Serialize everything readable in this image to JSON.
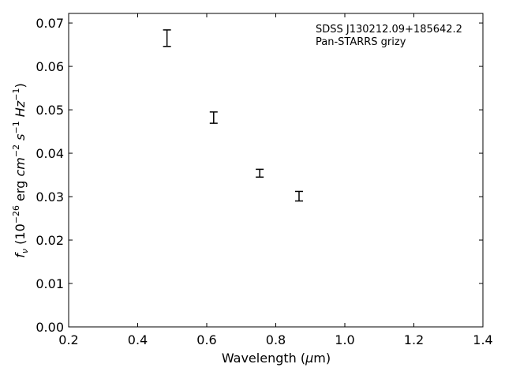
{
  "chart_data": {
    "type": "scatter",
    "title": "",
    "xlabel_prefix": "Wavelength (",
    "xlabel_mu": "μ",
    "xlabel_unit": "m",
    "xlabel_suffix": ")",
    "ylabel_f": "f",
    "ylabel_nu": "ν",
    "ylabel_open": " (10",
    "ylabel_exp_26": "−26",
    "ylabel_erg": " erg ",
    "ylabel_cm": "cm",
    "ylabel_exp_cm": "−2",
    "ylabel_s": " s",
    "ylabel_exp_s": "−1",
    "ylabel_hz": " Hz",
    "ylabel_exp_hz": "−1",
    "ylabel_close": ")",
    "xlim": [
      0.2,
      1.4
    ],
    "ylim": [
      0.0,
      0.0722
    ],
    "xticks": [
      0.2,
      0.4,
      0.6,
      0.8,
      1.0,
      1.2,
      1.4
    ],
    "xtick_labels": [
      "0.2",
      "0.4",
      "0.6",
      "0.8",
      "1.0",
      "1.2",
      "1.4"
    ],
    "yticks": [
      0.0,
      0.01,
      0.02,
      0.03,
      0.04,
      0.05,
      0.06,
      0.07
    ],
    "ytick_labels": [
      "0.00",
      "0.01",
      "0.02",
      "0.03",
      "0.04",
      "0.05",
      "0.06",
      "0.07"
    ],
    "grid": false,
    "annotations": [
      "SDSS J130212.09+185642.2",
      "Pan-STARRS grizy"
    ],
    "annotation_position": "top-right",
    "series": [
      {
        "x": [
          0.4849,
          0.6201,
          0.7535,
          0.8674
        ],
        "y": [
          0.0665,
          0.0482,
          0.0354,
          0.0301
        ],
        "yerr": [
          0.0019,
          0.0013,
          0.0009,
          0.0011
        ]
      }
    ]
  }
}
